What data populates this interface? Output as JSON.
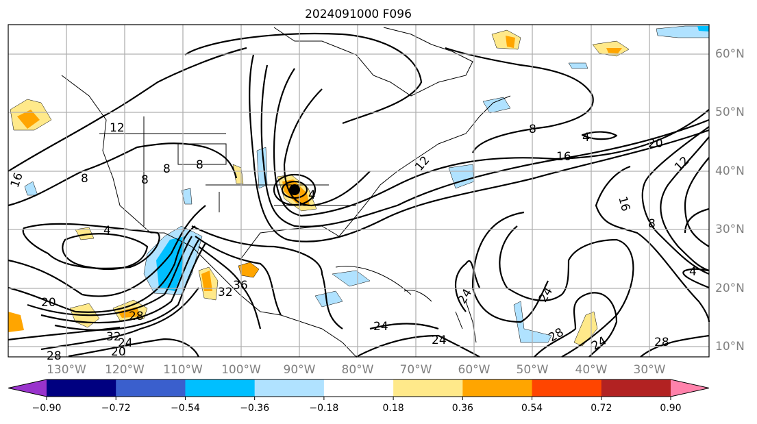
{
  "title": "2024091000 F096",
  "lat_labels": [
    "60°N",
    "50°N",
    "40°N",
    "30°N",
    "20°N",
    "10°N"
  ],
  "lon_labels": [
    "130°W",
    "120°W",
    "110°W",
    "100°W",
    "90°W",
    "80°W",
    "70°W",
    "60°W",
    "50°W",
    "40°W",
    "30°W"
  ],
  "contour_labels": [
    "12",
    "16",
    "8",
    "8",
    "8",
    "8",
    "4",
    "20",
    "28",
    "32",
    "24",
    "20",
    "28",
    "32",
    "36",
    "4",
    "12",
    "8",
    "4",
    "16",
    "20",
    "12",
    "16",
    "8",
    "4",
    "24",
    "24",
    "24",
    "28",
    "24",
    "28",
    "24"
  ],
  "colorbar": {
    "colors": [
      "#9933cc",
      "#000080",
      "#3a5fcd",
      "#00bfff",
      "#b0e2ff",
      "#ffffff",
      "#ffe98a",
      "#ffa500",
      "#ff4500",
      "#b22222",
      "#ff82ab"
    ],
    "ticks": [
      "−0.90",
      "−0.72",
      "−0.54",
      "−0.36",
      "−0.18",
      "0.18",
      "0.36",
      "0.54",
      "0.72",
      "0.90"
    ]
  },
  "shading": {
    "light_pos": "#ffe98a",
    "pos": "#ffa500",
    "light_neg": "#b0e2ff",
    "neg": "#00bfff"
  }
}
